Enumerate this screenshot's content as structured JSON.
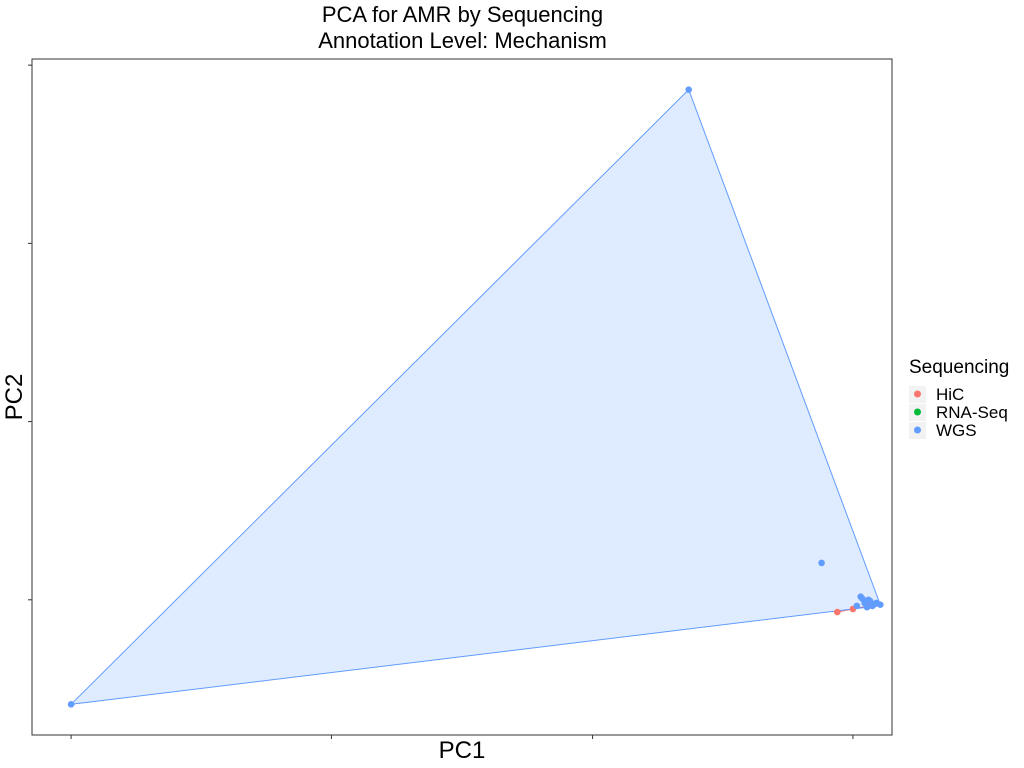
{
  "chart_data": {
    "type": "scatter",
    "title_lines": [
      "PCA for AMR by Sequencing",
      "Annotation Level: Mechanism"
    ],
    "xlabel": "PC1",
    "ylabel": "PC2",
    "xlim": [
      -0.05,
      1.05
    ],
    "ylim": [
      -0.05,
      1.05
    ],
    "xticks": [
      0.0,
      0.333,
      0.667,
      1.0
    ],
    "yticks": [
      0.17,
      0.46,
      0.75,
      1.04
    ],
    "tick_labels_visible": false,
    "grid": false,
    "legend": {
      "title": "Sequencing",
      "position": "right",
      "entries": [
        {
          "name": "HiC",
          "color": "#F8766D"
        },
        {
          "name": "RNA-Seq",
          "color": "#00BA38"
        },
        {
          "name": "WGS",
          "color": "#619CFF"
        }
      ]
    },
    "series": [
      {
        "name": "HiC",
        "color": "#F8766D",
        "x": [
          0.98,
          1.0,
          1.02
        ],
        "y": [
          0.15,
          0.155,
          0.16
        ],
        "hull": true
      },
      {
        "name": "RNA-Seq",
        "color": "#00BA38",
        "x": [],
        "y": [],
        "hull": false
      },
      {
        "name": "WGS",
        "color": "#619CFF",
        "x": [
          0.0,
          0.79,
          0.96,
          1.03,
          1.01,
          1.02,
          1.025,
          1.015,
          1.005,
          1.035,
          1.022,
          1.012,
          1.018,
          1.028
        ],
        "y": [
          0.0,
          1.0,
          0.23,
          0.165,
          0.175,
          0.17,
          0.16,
          0.165,
          0.16,
          0.162,
          0.168,
          0.172,
          0.158,
          0.163
        ],
        "hull": true
      }
    ]
  }
}
